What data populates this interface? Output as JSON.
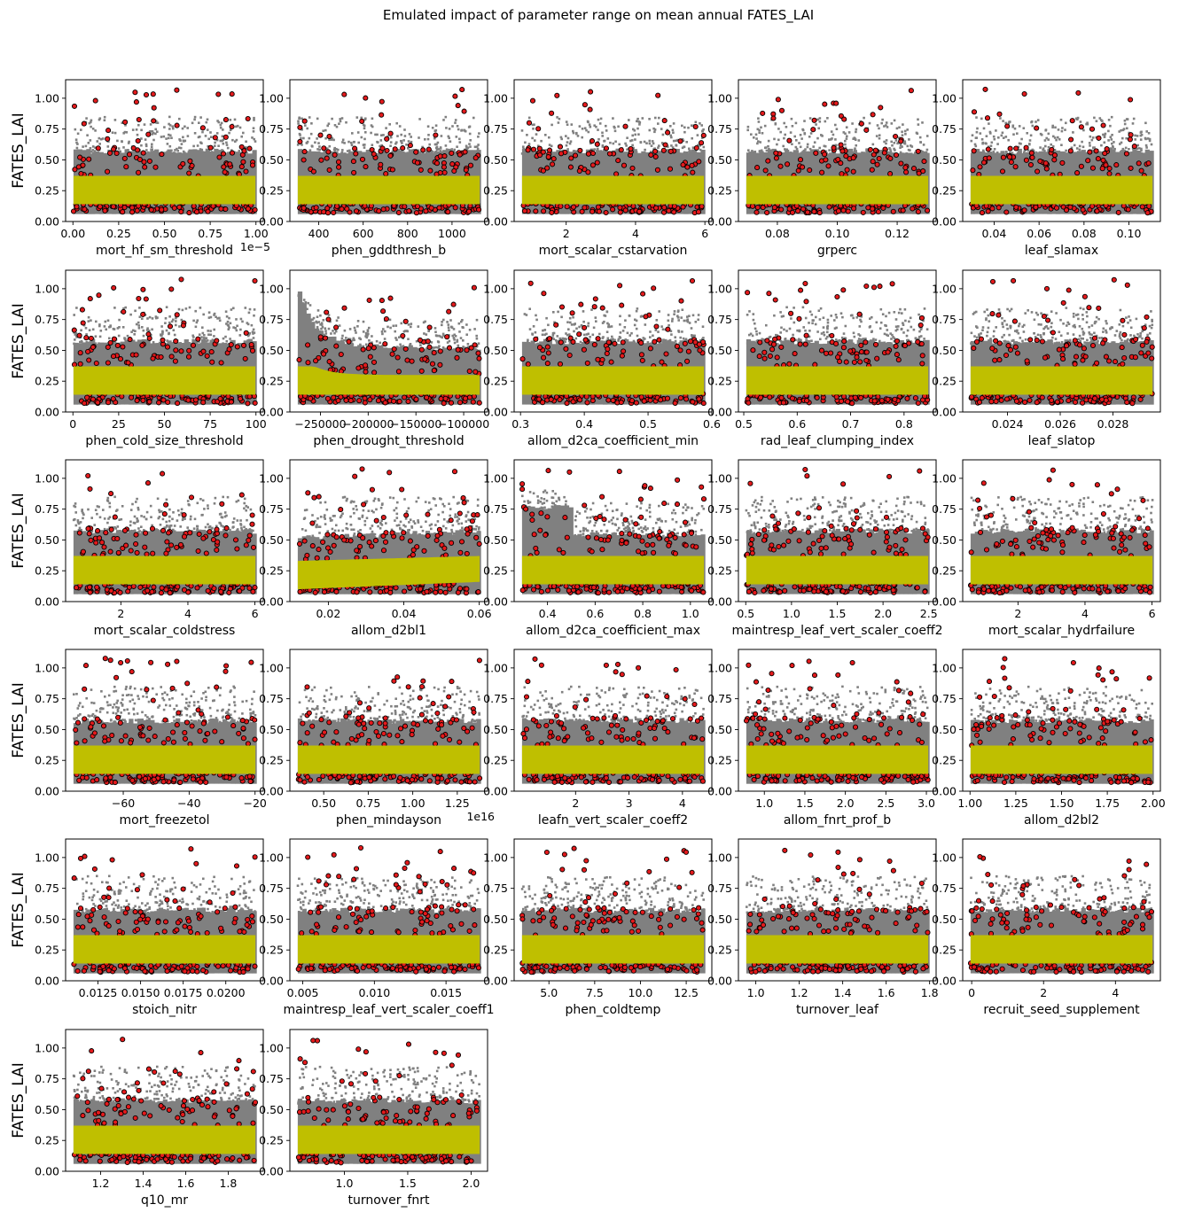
{
  "figure": {
    "title": "Emulated impact of parameter range on mean annual FATES_LAI",
    "ylabel": "FATES_LAI"
  },
  "colors": {
    "gray_points": "#808080",
    "red_points": "#e41a1c",
    "yellow_band": "#bfbf00",
    "axes": "#000000"
  },
  "chart_data": [
    {
      "type": "scatter",
      "xlabel": "mort_hf_sm_threshold",
      "xlim": [
        -0.04,
        1.04
      ],
      "xticks": [
        0,
        0.25,
        0.5,
        0.75,
        1
      ],
      "xtick_labels": [
        "0.00",
        "0.25",
        "0.50",
        "0.75",
        "1.00"
      ],
      "offset_text": "1e−5",
      "ylim": [
        0,
        1.15
      ],
      "yticks": [
        0,
        0.25,
        0.5,
        0.75,
        1
      ],
      "ytick_labels": [
        "0.00",
        "0.25",
        "0.50",
        "0.75",
        "1.00"
      ],
      "shape": "flat"
    },
    {
      "type": "scatter",
      "xlabel": "phen_gddthresh_b",
      "xlim": [
        270,
        1160
      ],
      "xticks": [
        400,
        600,
        800,
        1000
      ],
      "xtick_labels": [
        "400",
        "600",
        "800",
        "1000"
      ],
      "ylim": [
        0,
        1.15
      ],
      "yticks": [
        0,
        0.25,
        0.5,
        0.75,
        1
      ],
      "ytick_labels": [
        "0.00",
        "0.25",
        "0.50",
        "0.75",
        "1.00"
      ],
      "shape": "flat"
    },
    {
      "type": "scatter",
      "xlabel": "mort_scalar_cstarvation",
      "xlim": [
        0.5,
        6.2
      ],
      "xticks": [
        2,
        4,
        6
      ],
      "xtick_labels": [
        "2",
        "4",
        "6"
      ],
      "ylim": [
        0,
        1.15
      ],
      "yticks": [
        0,
        0.25,
        0.5,
        0.75,
        1
      ],
      "ytick_labels": [
        "0.00",
        "0.25",
        "0.50",
        "0.75",
        "1.00"
      ],
      "shape": "flat"
    },
    {
      "type": "scatter",
      "xlabel": "grperc",
      "xlim": [
        0.067,
        0.133
      ],
      "xticks": [
        0.08,
        0.1,
        0.12
      ],
      "xtick_labels": [
        "0.08",
        "0.10",
        "0.12"
      ],
      "ylim": [
        0,
        1.15
      ],
      "yticks": [
        0,
        0.25,
        0.5,
        0.75,
        1
      ],
      "ytick_labels": [
        "0.00",
        "0.25",
        "0.50",
        "0.75",
        "1.00"
      ],
      "shape": "flat"
    },
    {
      "type": "scatter",
      "xlabel": "leaf_slamax",
      "xlim": [
        0.026,
        0.114
      ],
      "xticks": [
        0.04,
        0.06,
        0.08,
        0.1
      ],
      "xtick_labels": [
        "0.04",
        "0.06",
        "0.08",
        "0.10"
      ],
      "ylim": [
        0,
        1.15
      ],
      "yticks": [
        0,
        0.25,
        0.5,
        0.75,
        1
      ],
      "ytick_labels": [
        "0.00",
        "0.25",
        "0.50",
        "0.75",
        "1.00"
      ],
      "shape": "flat"
    },
    {
      "type": "scatter",
      "xlabel": "phen_cold_size_threshold",
      "xlim": [
        -4,
        104
      ],
      "xticks": [
        0,
        25,
        50,
        75,
        100
      ],
      "xtick_labels": [
        "0",
        "25",
        "50",
        "75",
        "100"
      ],
      "ylim": [
        0,
        1.15
      ],
      "yticks": [
        0,
        0.25,
        0.5,
        0.75,
        1
      ],
      "ytick_labels": [
        "0.00",
        "0.25",
        "0.50",
        "0.75",
        "1.00"
      ],
      "shape": "flat"
    },
    {
      "type": "scatter",
      "xlabel": "phen_drought_threshold",
      "xlim": [
        -282000,
        -75000
      ],
      "xticks": [
        -250000,
        -200000,
        -150000,
        -100000
      ],
      "xtick_labels": [
        "−250000",
        "−200000",
        "−150000",
        "−100000"
      ],
      "ylim": [
        0,
        1.15
      ],
      "yticks": [
        0,
        0.25,
        0.5,
        0.75,
        1
      ],
      "ytick_labels": [
        "0.00",
        "0.25",
        "0.50",
        "0.75",
        "1.00"
      ],
      "shape": "decay_left"
    },
    {
      "type": "scatter",
      "xlabel": "allom_d2ca_coefficient_min",
      "xlim": [
        0.29,
        0.6
      ],
      "xticks": [
        0.3,
        0.4,
        0.5,
        0.6
      ],
      "xtick_labels": [
        "0.3",
        "0.4",
        "0.5",
        "0.6"
      ],
      "ylim": [
        0,
        1.15
      ],
      "yticks": [
        0,
        0.25,
        0.5,
        0.75,
        1
      ],
      "ytick_labels": [
        "0.00",
        "0.25",
        "0.50",
        "0.75",
        "1.00"
      ],
      "shape": "flat"
    },
    {
      "type": "scatter",
      "xlabel": "rad_leaf_clumping_index",
      "xlim": [
        0.49,
        0.86
      ],
      "xticks": [
        0.5,
        0.6,
        0.7,
        0.8
      ],
      "xtick_labels": [
        "0.5",
        "0.6",
        "0.7",
        "0.8"
      ],
      "ylim": [
        0,
        1.15
      ],
      "yticks": [
        0,
        0.25,
        0.5,
        0.75,
        1
      ],
      "ytick_labels": [
        "0.00",
        "0.25",
        "0.50",
        "0.75",
        "1.00"
      ],
      "shape": "flat"
    },
    {
      "type": "scatter",
      "xlabel": "leaf_slatop",
      "xlim": [
        0.0223,
        0.0298
      ],
      "xticks": [
        0.024,
        0.026,
        0.028
      ],
      "xtick_labels": [
        "0.024",
        "0.026",
        "0.028"
      ],
      "ylim": [
        0,
        1.15
      ],
      "yticks": [
        0,
        0.25,
        0.5,
        0.75,
        1
      ],
      "ytick_labels": [
        "0.00",
        "0.25",
        "0.50",
        "0.75",
        "1.00"
      ],
      "shape": "flat"
    },
    {
      "type": "scatter",
      "xlabel": "mort_scalar_coldstress",
      "xlim": [
        0.35,
        6.25
      ],
      "xticks": [
        2,
        4,
        6
      ],
      "xtick_labels": [
        "2",
        "4",
        "6"
      ],
      "ylim": [
        0,
        1.15
      ],
      "yticks": [
        0,
        0.25,
        0.5,
        0.75,
        1
      ],
      "ytick_labels": [
        "0.00",
        "0.25",
        "0.50",
        "0.75",
        "1.00"
      ],
      "shape": "flat"
    },
    {
      "type": "scatter",
      "xlabel": "allom_d2bl1",
      "xlim": [
        0.0098,
        0.0622
      ],
      "xticks": [
        0.02,
        0.04,
        0.06
      ],
      "xtick_labels": [
        "0.02",
        "0.04",
        "0.06"
      ],
      "ylim": [
        0,
        1.15
      ],
      "yticks": [
        0,
        0.25,
        0.5,
        0.75,
        1
      ],
      "ytick_labels": [
        "0.00",
        "0.25",
        "0.50",
        "0.75",
        "1.00"
      ],
      "shape": "low_left"
    },
    {
      "type": "scatter",
      "xlabel": "allom_d2ca_coefficient_max",
      "xlim": [
        0.26,
        1.09
      ],
      "xticks": [
        0.4,
        0.6,
        0.8,
        1
      ],
      "xtick_labels": [
        "0.4",
        "0.6",
        "0.8",
        "1.0"
      ],
      "ylim": [
        0,
        1.15
      ],
      "yticks": [
        0,
        0.25,
        0.5,
        0.75,
        1
      ],
      "ytick_labels": [
        "0.00",
        "0.25",
        "0.50",
        "0.75",
        "1.00"
      ],
      "shape": "step_left"
    },
    {
      "type": "scatter",
      "xlabel": "maintresp_leaf_vert_scaler_coeff2",
      "xlim": [
        0.42,
        2.58
      ],
      "xticks": [
        0.5,
        1,
        1.5,
        2,
        2.5
      ],
      "xtick_labels": [
        "0.5",
        "1.0",
        "1.5",
        "2.0",
        "2.5"
      ],
      "ylim": [
        0,
        1.15
      ],
      "yticks": [
        0,
        0.25,
        0.5,
        0.75,
        1
      ],
      "ytick_labels": [
        "0.00",
        "0.25",
        "0.50",
        "0.75",
        "1.00"
      ],
      "shape": "flat"
    },
    {
      "type": "scatter",
      "xlabel": "mort_scalar_hydrfailure",
      "xlim": [
        0.35,
        6.25
      ],
      "xticks": [
        2,
        4,
        6
      ],
      "xtick_labels": [
        "2",
        "4",
        "6"
      ],
      "ylim": [
        0,
        1.15
      ],
      "yticks": [
        0,
        0.25,
        0.5,
        0.75,
        1
      ],
      "ytick_labels": [
        "0.00",
        "0.25",
        "0.50",
        "0.75",
        "1.00"
      ],
      "shape": "flat"
    },
    {
      "type": "scatter",
      "xlabel": "mort_freezetol",
      "xlim": [
        -77.5,
        -17.5
      ],
      "xticks": [
        -60,
        -40,
        -20
      ],
      "xtick_labels": [
        "−60",
        "−40",
        "−20"
      ],
      "ylim": [
        0,
        1.15
      ],
      "yticks": [
        0,
        0.25,
        0.5,
        0.75,
        1
      ],
      "ytick_labels": [
        "0.00",
        "0.25",
        "0.50",
        "0.75",
        "1.00"
      ],
      "shape": "flat"
    },
    {
      "type": "scatter",
      "xlabel": "phen_mindayson",
      "xlim": [
        0.31,
        1.42
      ],
      "xticks": [
        0.5,
        0.75,
        1,
        1.25
      ],
      "xtick_labels": [
        "0.50",
        "0.75",
        "1.00",
        "1.25"
      ],
      "offset_text": "1e16",
      "ylim": [
        0,
        1.15
      ],
      "yticks": [
        0,
        0.25,
        0.5,
        0.75,
        1
      ],
      "ytick_labels": [
        "0.00",
        "0.25",
        "0.50",
        "0.75",
        "1.00"
      ],
      "shape": "flat"
    },
    {
      "type": "scatter",
      "xlabel": "leafn_vert_scaler_coeff2",
      "xlim": [
        0.85,
        4.55
      ],
      "xticks": [
        2,
        3,
        4
      ],
      "xtick_labels": [
        "2",
        "3",
        "4"
      ],
      "ylim": [
        0,
        1.15
      ],
      "yticks": [
        0,
        0.25,
        0.5,
        0.75,
        1
      ],
      "ytick_labels": [
        "0.00",
        "0.25",
        "0.50",
        "0.75",
        "1.00"
      ],
      "shape": "flat"
    },
    {
      "type": "scatter",
      "xlabel": "allom_fnrt_prof_b",
      "xlim": [
        0.68,
        3.12
      ],
      "xticks": [
        1,
        1.5,
        2,
        2.5,
        3
      ],
      "xtick_labels": [
        "1.0",
        "1.5",
        "2.0",
        "2.5",
        "3.0"
      ],
      "ylim": [
        0,
        1.15
      ],
      "yticks": [
        0,
        0.25,
        0.5,
        0.75,
        1
      ],
      "ytick_labels": [
        "0.00",
        "0.25",
        "0.50",
        "0.75",
        "1.00"
      ],
      "shape": "flat"
    },
    {
      "type": "scatter",
      "xlabel": "allom_d2bl2",
      "xlim": [
        0.96,
        2.04
      ],
      "xticks": [
        1,
        1.25,
        1.5,
        1.75,
        2
      ],
      "xtick_labels": [
        "1.00",
        "1.25",
        "1.50",
        "1.75",
        "2.00"
      ],
      "ylim": [
        0,
        1.15
      ],
      "yticks": [
        0,
        0.25,
        0.5,
        0.75,
        1
      ],
      "ytick_labels": [
        "0.00",
        "0.25",
        "0.50",
        "0.75",
        "1.00"
      ],
      "shape": "flat"
    },
    {
      "type": "scatter",
      "xlabel": "stoich_nitr",
      "xlim": [
        0.0106,
        0.0222
      ],
      "xticks": [
        0.0125,
        0.015,
        0.0175,
        0.02
      ],
      "xtick_labels": [
        "0.0125",
        "0.0150",
        "0.0175",
        "0.0200"
      ],
      "ylim": [
        0,
        1.15
      ],
      "yticks": [
        0,
        0.25,
        0.5,
        0.75,
        1
      ],
      "ytick_labels": [
        "0.00",
        "0.25",
        "0.50",
        "0.75",
        "1.00"
      ],
      "shape": "flat"
    },
    {
      "type": "scatter",
      "xlabel": "maintresp_leaf_vert_scaler_coeff1",
      "xlim": [
        0.0041,
        0.0179
      ],
      "xticks": [
        0.005,
        0.01,
        0.015
      ],
      "xtick_labels": [
        "0.005",
        "0.010",
        "0.015"
      ],
      "ylim": [
        0,
        1.15
      ],
      "yticks": [
        0,
        0.25,
        0.5,
        0.75,
        1
      ],
      "ytick_labels": [
        "0.00",
        "0.25",
        "0.50",
        "0.75",
        "1.00"
      ],
      "shape": "flat"
    },
    {
      "type": "scatter",
      "xlabel": "phen_coldtemp",
      "xlim": [
        3.1,
        13.9
      ],
      "xticks": [
        5,
        7.5,
        10,
        12.5
      ],
      "xtick_labels": [
        "5.0",
        "7.5",
        "10.0",
        "12.5"
      ],
      "ylim": [
        0,
        1.15
      ],
      "yticks": [
        0,
        0.25,
        0.5,
        0.75,
        1
      ],
      "ytick_labels": [
        "0.00",
        "0.25",
        "0.50",
        "0.75",
        "1.00"
      ],
      "shape": "flat"
    },
    {
      "type": "scatter",
      "xlabel": "turnover_leaf",
      "xlim": [
        0.92,
        1.83
      ],
      "xticks": [
        1,
        1.2,
        1.4,
        1.6,
        1.8
      ],
      "xtick_labels": [
        "1.0",
        "1.2",
        "1.4",
        "1.6",
        "1.8"
      ],
      "ylim": [
        0,
        1.15
      ],
      "yticks": [
        0,
        0.25,
        0.5,
        0.75,
        1
      ],
      "ytick_labels": [
        "0.00",
        "0.25",
        "0.50",
        "0.75",
        "1.00"
      ],
      "shape": "flat"
    },
    {
      "type": "scatter",
      "xlabel": "recruit_seed_supplement",
      "xlim": [
        -0.25,
        5.25
      ],
      "xticks": [
        0,
        2,
        4
      ],
      "xtick_labels": [
        "0",
        "2",
        "4"
      ],
      "ylim": [
        0,
        1.15
      ],
      "yticks": [
        0,
        0.25,
        0.5,
        0.75,
        1
      ],
      "ytick_labels": [
        "0.00",
        "0.25",
        "0.50",
        "0.75",
        "1.00"
      ],
      "shape": "flat"
    },
    {
      "type": "scatter",
      "xlabel": "q10_mr",
      "xlim": [
        1.035,
        1.965
      ],
      "xticks": [
        1.2,
        1.4,
        1.6,
        1.8
      ],
      "xtick_labels": [
        "1.2",
        "1.4",
        "1.6",
        "1.8"
      ],
      "ylim": [
        0,
        1.15
      ],
      "yticks": [
        0,
        0.25,
        0.5,
        0.75,
        1
      ],
      "ytick_labels": [
        "0.00",
        "0.25",
        "0.50",
        "0.75",
        "1.00"
      ],
      "shape": "flat"
    },
    {
      "type": "scatter",
      "xlabel": "turnover_fnrt",
      "xlim": [
        0.57,
        2.13
      ],
      "xticks": [
        1,
        1.5,
        2
      ],
      "xtick_labels": [
        "1.0",
        "1.5",
        "2.0"
      ],
      "ylim": [
        0,
        1.15
      ],
      "yticks": [
        0,
        0.25,
        0.5,
        0.75,
        1
      ],
      "ytick_labels": [
        "0.00",
        "0.25",
        "0.50",
        "0.75",
        "1.00"
      ],
      "shape": "flat"
    }
  ]
}
